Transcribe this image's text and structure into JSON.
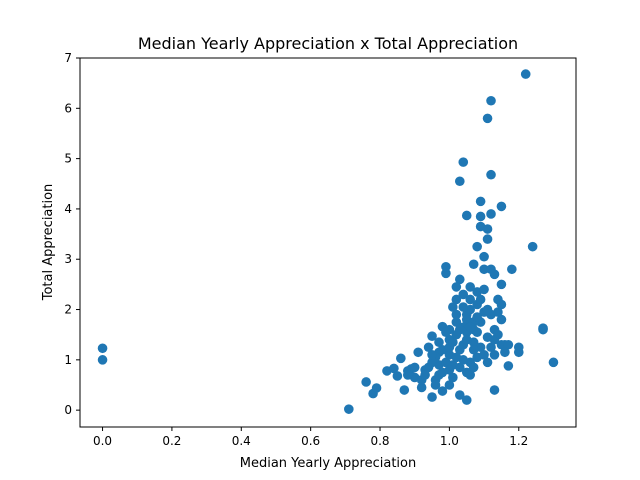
{
  "chart_data": {
    "type": "scatter",
    "title": "Median Yearly Appreciation x Total Appreciation",
    "xlabel": "Median Yearly Appreciation",
    "ylabel": "Total Appreciation",
    "xlim": [
      -0.065,
      1.365
    ],
    "ylim": [
      -0.335,
      7.0
    ],
    "xticks": [
      0.0,
      0.2,
      0.4,
      0.6,
      0.8,
      1.0,
      1.2
    ],
    "xtick_labels": [
      "0.0",
      "0.2",
      "0.4",
      "0.6",
      "0.8",
      "1.0",
      "1.2"
    ],
    "yticks": [
      0,
      1,
      2,
      3,
      4,
      5,
      6,
      7
    ],
    "ytick_labels": [
      "0",
      "1",
      "2",
      "3",
      "4",
      "5",
      "6",
      "7"
    ],
    "grid": false,
    "marker_color": "#1f77b4",
    "series": [
      {
        "points": [
          [
            0.0,
            1.23
          ],
          [
            0.0,
            1.0
          ],
          [
            0.71,
            0.02
          ],
          [
            0.76,
            0.56
          ],
          [
            0.78,
            0.33
          ],
          [
            0.79,
            0.44
          ],
          [
            0.82,
            0.78
          ],
          [
            0.84,
            0.83
          ],
          [
            0.85,
            0.68
          ],
          [
            0.86,
            1.03
          ],
          [
            0.87,
            0.4
          ],
          [
            0.88,
            0.78
          ],
          [
            0.89,
            0.82
          ],
          [
            0.9,
            0.65
          ],
          [
            0.91,
            1.15
          ],
          [
            0.92,
            0.45
          ],
          [
            0.93,
            0.8
          ],
          [
            0.94,
            1.25
          ],
          [
            0.95,
            0.26
          ],
          [
            0.95,
            1.47
          ],
          [
            0.96,
            0.6
          ],
          [
            0.97,
            0.9
          ],
          [
            0.97,
            1.15
          ],
          [
            0.98,
            1.66
          ],
          [
            0.98,
            0.38
          ],
          [
            0.99,
            2.72
          ],
          [
            0.99,
            2.85
          ],
          [
            1.0,
            1.1
          ],
          [
            1.0,
            0.5
          ],
          [
            1.0,
            1.4
          ],
          [
            1.01,
            2.05
          ],
          [
            1.01,
            0.9
          ],
          [
            1.02,
            1.75
          ],
          [
            1.02,
            2.2
          ],
          [
            1.03,
            2.6
          ],
          [
            1.03,
            0.3
          ],
          [
            1.03,
            4.55
          ],
          [
            1.04,
            4.93
          ],
          [
            1.04,
            1.3
          ],
          [
            1.05,
            3.87
          ],
          [
            1.05,
            0.2
          ],
          [
            1.05,
            1.9
          ],
          [
            1.06,
            2.45
          ],
          [
            1.06,
            0.7
          ],
          [
            1.07,
            2.9
          ],
          [
            1.07,
            1.6
          ],
          [
            1.08,
            3.25
          ],
          [
            1.08,
            2.1
          ],
          [
            1.09,
            3.85
          ],
          [
            1.09,
            4.15
          ],
          [
            1.09,
            3.65
          ],
          [
            1.1,
            2.8
          ],
          [
            1.1,
            3.05
          ],
          [
            1.11,
            5.8
          ],
          [
            1.11,
            3.4
          ],
          [
            1.11,
            3.6
          ],
          [
            1.12,
            6.15
          ],
          [
            1.12,
            4.68
          ],
          [
            1.12,
            3.9
          ],
          [
            1.12,
            2.8
          ],
          [
            1.13,
            2.7
          ],
          [
            1.13,
            0.4
          ],
          [
            1.13,
            1.6
          ],
          [
            1.14,
            2.2
          ],
          [
            1.15,
            4.05
          ],
          [
            1.15,
            2.5
          ],
          [
            1.15,
            1.8
          ],
          [
            1.16,
            1.3
          ],
          [
            1.17,
            0.88
          ],
          [
            1.18,
            2.8
          ],
          [
            1.2,
            1.25
          ],
          [
            1.2,
            1.15
          ],
          [
            1.22,
            6.68
          ],
          [
            1.24,
            3.25
          ],
          [
            1.27,
            1.6
          ],
          [
            1.27,
            1.63
          ],
          [
            1.3,
            0.95
          ],
          [
            0.92,
            0.6
          ],
          [
            0.93,
            0.7
          ],
          [
            0.94,
            0.85
          ],
          [
            0.95,
            0.95
          ],
          [
            0.96,
            1.05
          ],
          [
            0.97,
            0.7
          ],
          [
            0.98,
            1.2
          ],
          [
            0.99,
            0.95
          ],
          [
            1.0,
            1.25
          ],
          [
            1.01,
            1.35
          ],
          [
            1.02,
            1.5
          ],
          [
            1.03,
            1.2
          ],
          [
            1.04,
            1.65
          ],
          [
            1.05,
            1.8
          ],
          [
            1.06,
            2.0
          ],
          [
            1.07,
            1.35
          ],
          [
            1.08,
            1.55
          ],
          [
            1.09,
            1.75
          ],
          [
            1.1,
            1.95
          ],
          [
            1.11,
            1.45
          ],
          [
            1.12,
            1.25
          ],
          [
            1.13,
            1.1
          ],
          [
            1.14,
            1.5
          ],
          [
            1.15,
            1.3
          ],
          [
            1.04,
            2.3
          ],
          [
            1.06,
            2.2
          ],
          [
            1.08,
            2.35
          ],
          [
            1.02,
            1.9
          ],
          [
            1.05,
            1.55
          ],
          [
            1.07,
            1.75
          ],
          [
            1.09,
            1.25
          ],
          [
            1.11,
            0.95
          ],
          [
            1.03,
            0.85
          ],
          [
            1.0,
            0.8
          ],
          [
            0.98,
            0.75
          ],
          [
            0.96,
            0.5
          ],
          [
            1.01,
            0.65
          ],
          [
            1.06,
            0.95
          ],
          [
            1.08,
            1.05
          ],
          [
            1.1,
            1.1
          ],
          [
            1.12,
            1.9
          ],
          [
            1.14,
            1.95
          ],
          [
            1.04,
            1.0
          ],
          [
            1.02,
            1.05
          ],
          [
            1.07,
            1.2
          ],
          [
            1.05,
            1.4
          ],
          [
            1.03,
            1.6
          ],
          [
            1.09,
            2.2
          ],
          [
            1.11,
            2.0
          ],
          [
            1.0,
            1.6
          ],
          [
            0.97,
            1.35
          ],
          [
            0.95,
            1.1
          ],
          [
            0.99,
            1.55
          ],
          [
            1.06,
            1.65
          ],
          [
            1.08,
            1.85
          ],
          [
            1.13,
            1.4
          ],
          [
            1.15,
            2.1
          ],
          [
            1.1,
            2.4
          ],
          [
            1.04,
            2.05
          ],
          [
            1.02,
            2.45
          ],
          [
            0.9,
            0.85
          ],
          [
            0.88,
            0.7
          ],
          [
            1.17,
            1.3
          ],
          [
            1.16,
            1.15
          ],
          [
            1.05,
            0.75
          ],
          [
            1.07,
            0.85
          ]
        ]
      }
    ]
  }
}
